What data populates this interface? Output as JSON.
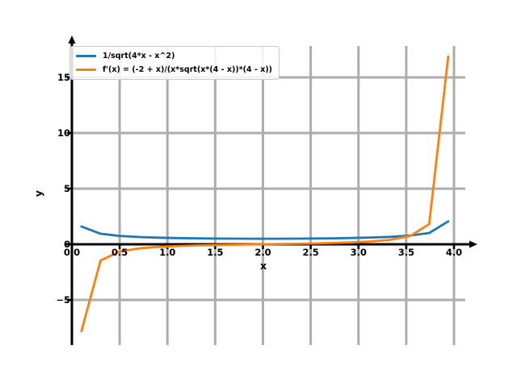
{
  "figure": {
    "background": "#ffffff",
    "grid_color": "#adadad",
    "axis_color": "#000000"
  },
  "chart_data": {
    "type": "line",
    "xlabel": "x",
    "ylabel": "y",
    "xlim": [
      -0.08,
      4.12
    ],
    "ylim": [
      -9.1,
      17.8
    ],
    "grid": true,
    "legend_position": "upper left",
    "x_ticks": [
      0.0,
      0.5,
      1.0,
      1.5,
      2.0,
      2.5,
      3.0,
      3.5,
      4.0
    ],
    "x_tick_labels": [
      "0.0",
      "0.5",
      "1.0",
      "1.5",
      "2.0",
      "2.5",
      "3.0",
      "3.5",
      "4.0"
    ],
    "y_ticks": [
      -5,
      0,
      5,
      10,
      15
    ],
    "y_tick_labels": [
      "−5",
      "0",
      "5",
      "10",
      "15"
    ],
    "series": [
      {
        "name": "1/sqrt(4*x - x^2)",
        "color": "#1f77b4",
        "x": [
          0.1,
          0.3,
          0.5,
          0.71,
          0.91,
          1.11,
          1.31,
          1.51,
          1.72,
          1.92,
          2.12,
          2.32,
          2.53,
          2.73,
          2.93,
          3.13,
          3.33,
          3.54,
          3.74,
          3.94
        ],
        "y": [
          1.601,
          0.949,
          0.756,
          0.654,
          0.596,
          0.558,
          0.533,
          0.516,
          0.505,
          0.5,
          0.501,
          0.507,
          0.519,
          0.537,
          0.565,
          0.606,
          0.669,
          0.784,
          1.014,
          2.057
        ]
      },
      {
        "name": "f'(x) = (-2 + x)/(x*sqrt(x*(4 - x))*(4 - x))",
        "color": "#ff7f0e",
        "x": [
          0.1,
          0.3,
          0.5,
          0.71,
          0.91,
          1.11,
          1.31,
          1.51,
          1.72,
          1.92,
          2.12,
          2.32,
          2.53,
          2.73,
          2.93,
          3.13,
          3.33,
          3.54,
          3.74,
          3.94
        ],
        "y": [
          -7.801,
          -1.454,
          -0.648,
          -0.361,
          -0.231,
          -0.155,
          -0.104,
          -0.067,
          -0.036,
          -0.01,
          0.015,
          0.042,
          0.074,
          0.113,
          0.168,
          0.251,
          0.399,
          0.741,
          1.815,
          16.878
        ]
      }
    ]
  }
}
